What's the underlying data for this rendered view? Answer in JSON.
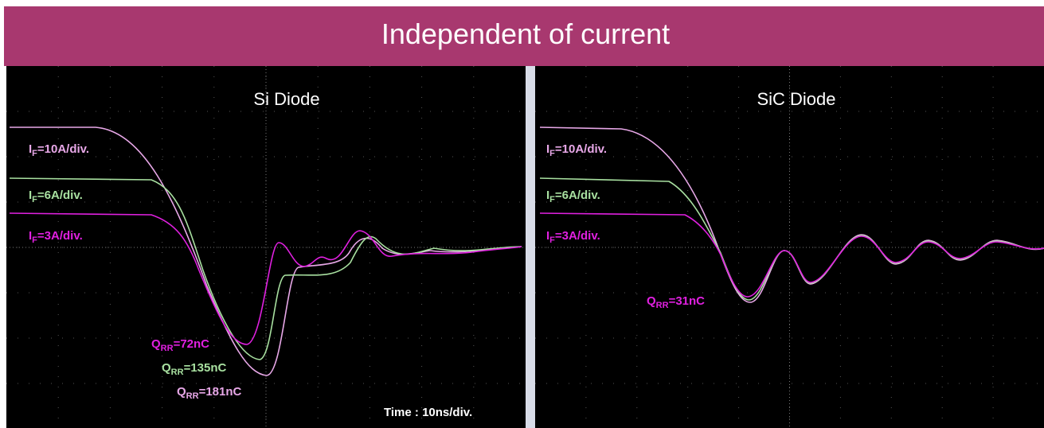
{
  "header": {
    "title": "Independent of current"
  },
  "panels": [
    {
      "title": "Si Diode",
      "labels": [
        {
          "symbol": "I",
          "subscript": "F",
          "text": "=10A/div."
        },
        {
          "symbol": "I",
          "subscript": "F",
          "text": "=6A/div."
        },
        {
          "symbol": "I",
          "subscript": "F",
          "text": "=3A/div."
        }
      ],
      "charges": [
        {
          "symbol": "Q",
          "subscript": "RR",
          "text": "=72nC"
        },
        {
          "symbol": "Q",
          "subscript": "RR",
          "text": "=135nC"
        },
        {
          "symbol": "Q",
          "subscript": "RR",
          "text": "=181nC"
        }
      ],
      "timebase": "Time : 10ns/div."
    },
    {
      "title": "SiC Diode",
      "labels": [
        {
          "symbol": "I",
          "subscript": "F",
          "text": "=10A/div."
        },
        {
          "symbol": "I",
          "subscript": "F",
          "text": "=6A/div."
        },
        {
          "symbol": "I",
          "subscript": "F",
          "text": "=3A/div."
        }
      ],
      "charges": [
        {
          "symbol": "Q",
          "subscript": "RR",
          "text": "=31nC"
        }
      ]
    }
  ]
}
